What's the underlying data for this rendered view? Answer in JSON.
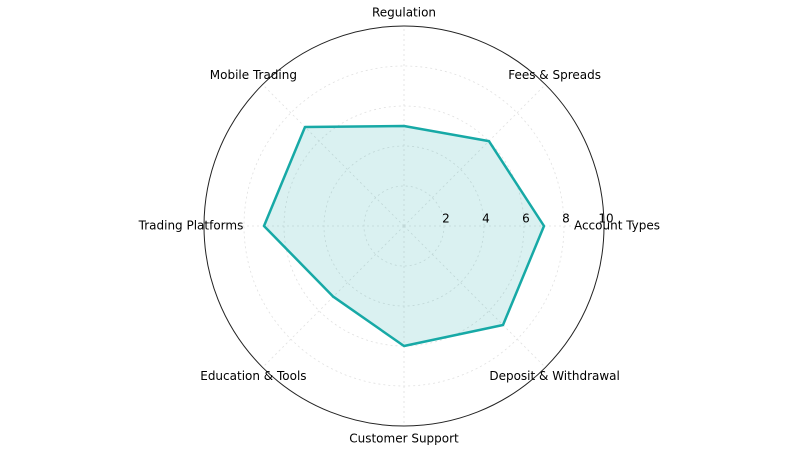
{
  "chart_data": {
    "type": "radar",
    "categories": [
      "Account Types",
      "Fees & Spreads",
      "Regulation",
      "Mobile Trading",
      "Trading Platforms",
      "Education & Tools",
      "Customer Support",
      "Deposit & Withdrawal"
    ],
    "values": [
      7,
      6,
      5,
      7,
      7,
      5,
      6,
      7
    ],
    "color": "#17a9a6",
    "ylim": [
      0,
      10
    ],
    "yticks": [
      2,
      4,
      6,
      8,
      10
    ],
    "grid": true
  }
}
